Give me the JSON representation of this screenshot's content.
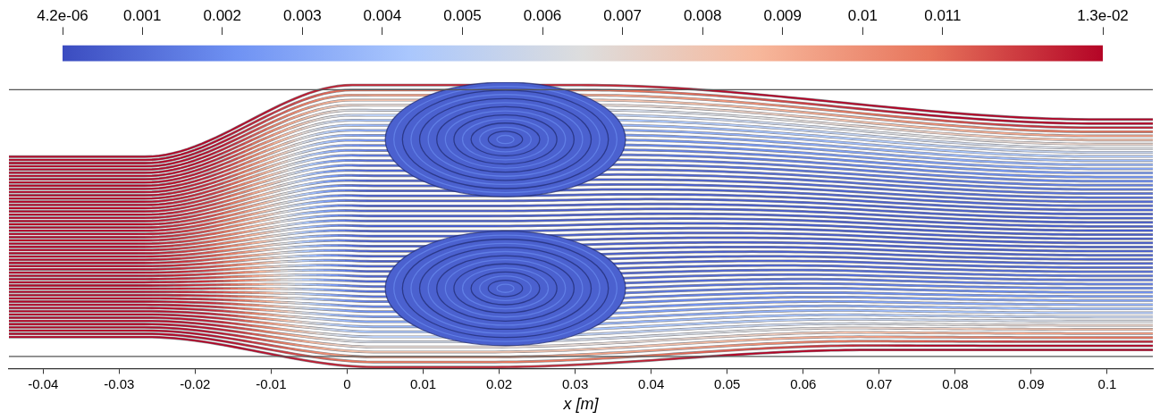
{
  "chart_data": {
    "type": "streamline",
    "x_label": "x [m]",
    "xlim": [
      -0.0445,
      0.106
    ],
    "xticks": [
      -0.04,
      -0.03,
      -0.02,
      -0.01,
      0,
      0.01,
      0.02,
      0.03,
      0.04,
      0.05,
      0.06,
      0.07,
      0.08,
      0.09,
      0.1
    ],
    "tick_labels": "x",
    "colorbar": {
      "range": [
        4.2e-06,
        0.013
      ],
      "ticks": [
        {
          "value": 4.2e-06,
          "label": "4.2e-06"
        },
        0.001,
        0.002,
        0.003,
        0.004,
        0.005,
        0.006,
        0.007,
        0.008,
        0.009,
        0.01,
        0.011,
        {
          "value": 0.013,
          "label": "1.3e-02"
        }
      ],
      "colors": [
        "#3b4cc0",
        "#6f92f3",
        "#aac7fd",
        "#dddddd",
        "#f7b89c",
        "#e7745b",
        "#b40426"
      ]
    }
  }
}
